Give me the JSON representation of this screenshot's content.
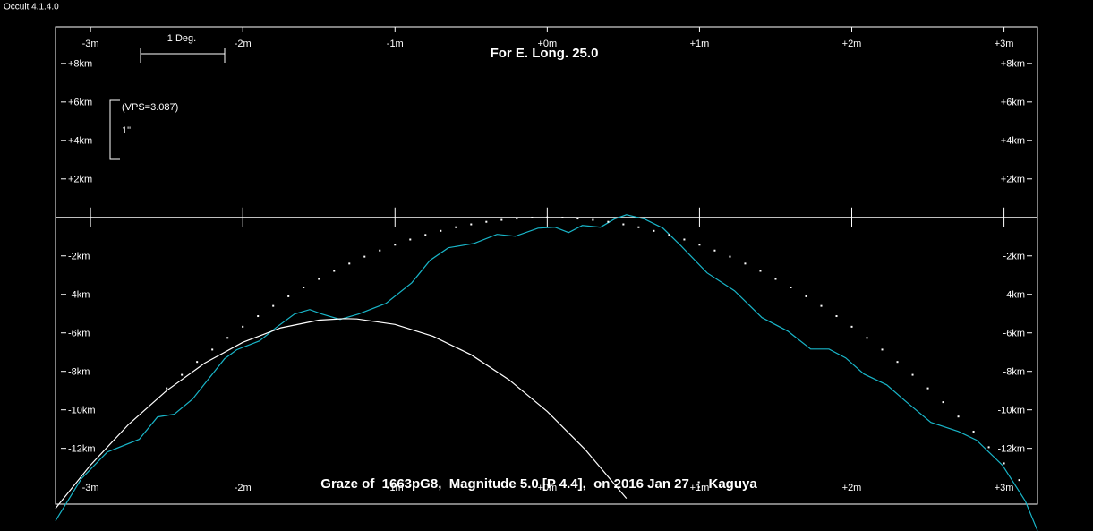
{
  "window_title": "Occult 4.1.4.0",
  "chart_data": {
    "type": "line",
    "title": "For E. Long. 25.0",
    "caption": "Graze of  1663pG8,  Magnitude 5.0 [P 4.4],  on 2016 Jan 27  :  Kaguya",
    "scale_label": "1 Deg.",
    "vps_label": "(VPS=3.087)",
    "arcsec_label": "1\"",
    "xlim": [
      -3.23,
      3.22
    ],
    "ylim": [
      -14.9,
      9.9
    ],
    "xticks": [
      {
        "value": -3,
        "label": "-3m"
      },
      {
        "value": -2,
        "label": "-2m"
      },
      {
        "value": -1,
        "label": "-1m"
      },
      {
        "value": 0,
        "label": "+0m"
      },
      {
        "value": 1,
        "label": "+1m"
      },
      {
        "value": 2,
        "label": "+2m"
      },
      {
        "value": 3,
        "label": "+3m"
      }
    ],
    "yticks": [
      {
        "value": 8,
        "label": "+8km"
      },
      {
        "value": 6,
        "label": "+6km"
      },
      {
        "value": 4,
        "label": "+4km"
      },
      {
        "value": 2,
        "label": "+2km"
      },
      {
        "value": -2,
        "label": "-2km"
      },
      {
        "value": -4,
        "label": "-4km"
      },
      {
        "value": -6,
        "label": "-6km"
      },
      {
        "value": -8,
        "label": "-8km"
      },
      {
        "value": -10,
        "label": "-10km"
      },
      {
        "value": -12,
        "label": "-12km"
      }
    ],
    "series": [
      {
        "color": "#19b5c8",
        "style": "line",
        "x": [
          -3.23,
          -3.06,
          -2.89,
          -2.68,
          -2.56,
          -2.45,
          -2.33,
          -2.12,
          -2.04,
          -1.89,
          -1.78,
          -1.66,
          -1.56,
          -1.48,
          -1.36,
          -1.24,
          -1.06,
          -0.89,
          -0.77,
          -0.65,
          -0.48,
          -0.33,
          -0.21,
          -0.06,
          0.05,
          0.14,
          0.23,
          0.35,
          0.44,
          0.52,
          0.64,
          0.76,
          0.88,
          1.05,
          1.23,
          1.41,
          1.58,
          1.73,
          1.85,
          1.96,
          2.08,
          2.23,
          2.35,
          2.52,
          2.7,
          2.82,
          2.99,
          3.14,
          3.22
        ],
        "values": [
          -15.77,
          -13.58,
          -12.19,
          -11.53,
          -10.37,
          -10.23,
          -9.44,
          -7.35,
          -6.88,
          -6.42,
          -5.72,
          -5.02,
          -4.79,
          -5.02,
          -5.3,
          -5.02,
          -4.47,
          -3.4,
          -2.23,
          -1.58,
          -1.35,
          -0.88,
          -0.98,
          -0.56,
          -0.51,
          -0.79,
          -0.42,
          -0.51,
          -0.09,
          0.14,
          -0.09,
          -0.56,
          -1.49,
          -2.88,
          -3.81,
          -5.21,
          -5.91,
          -6.84,
          -6.84,
          -7.3,
          -8.14,
          -8.7,
          -9.53,
          -10.65,
          -11.12,
          -11.58,
          -12.88,
          -14.74,
          -16.28
        ]
      },
      {
        "color": "#ffffff",
        "style": "line",
        "x": [
          -3.23,
          -3.0,
          -2.75,
          -2.5,
          -2.25,
          -2.0,
          -1.75,
          -1.5,
          -1.33,
          -1.25,
          -1.0,
          -0.75,
          -0.5,
          -0.25,
          0,
          0.25,
          0.52
        ],
        "values": [
          -15.12,
          -12.87,
          -10.76,
          -9.0,
          -7.57,
          -6.49,
          -5.74,
          -5.34,
          -5.26,
          -5.28,
          -5.56,
          -6.18,
          -7.14,
          -8.44,
          -10.09,
          -12.07,
          -14.6
        ]
      },
      {
        "color": "#ffffff",
        "style": "dots",
        "x": [
          -2.5,
          -2.4,
          -2.3,
          -2.2,
          -2.1,
          -2.0,
          -1.9,
          -1.8,
          -1.7,
          -1.6,
          -1.5,
          -1.4,
          -1.3,
          -1.2,
          -1.1,
          -1.0,
          -0.9,
          -0.8,
          -0.7,
          -0.6,
          -0.5,
          -0.4,
          -0.3,
          -0.2,
          -0.1,
          0,
          0.1,
          0.2,
          0.3,
          0.4,
          0.5,
          0.6,
          0.7,
          0.8,
          0.9,
          1.0,
          1.1,
          1.2,
          1.3,
          1.4,
          1.5,
          1.6,
          1.7,
          1.8,
          1.9,
          2.0,
          2.1,
          2.2,
          2.3,
          2.4,
          2.5,
          2.6,
          2.7,
          2.8,
          2.9,
          3.0,
          3.1
        ],
        "values": [
          -8.88,
          -8.18,
          -7.51,
          -6.87,
          -6.26,
          -5.68,
          -5.13,
          -4.6,
          -4.1,
          -3.64,
          -3.2,
          -2.78,
          -2.4,
          -2.04,
          -1.72,
          -1.42,
          -1.15,
          -0.91,
          -0.7,
          -0.51,
          -0.36,
          -0.23,
          -0.13,
          -0.06,
          -0.01,
          0,
          -0.01,
          -0.06,
          -0.13,
          -0.23,
          -0.36,
          -0.51,
          -0.7,
          -0.91,
          -1.15,
          -1.42,
          -1.72,
          -2.04,
          -2.4,
          -2.78,
          -3.2,
          -3.64,
          -4.1,
          -4.6,
          -5.13,
          -5.68,
          -6.26,
          -6.87,
          -7.51,
          -8.18,
          -8.88,
          -9.6,
          -10.35,
          -11.13,
          -11.94,
          -12.78,
          -13.65
        ]
      }
    ]
  }
}
